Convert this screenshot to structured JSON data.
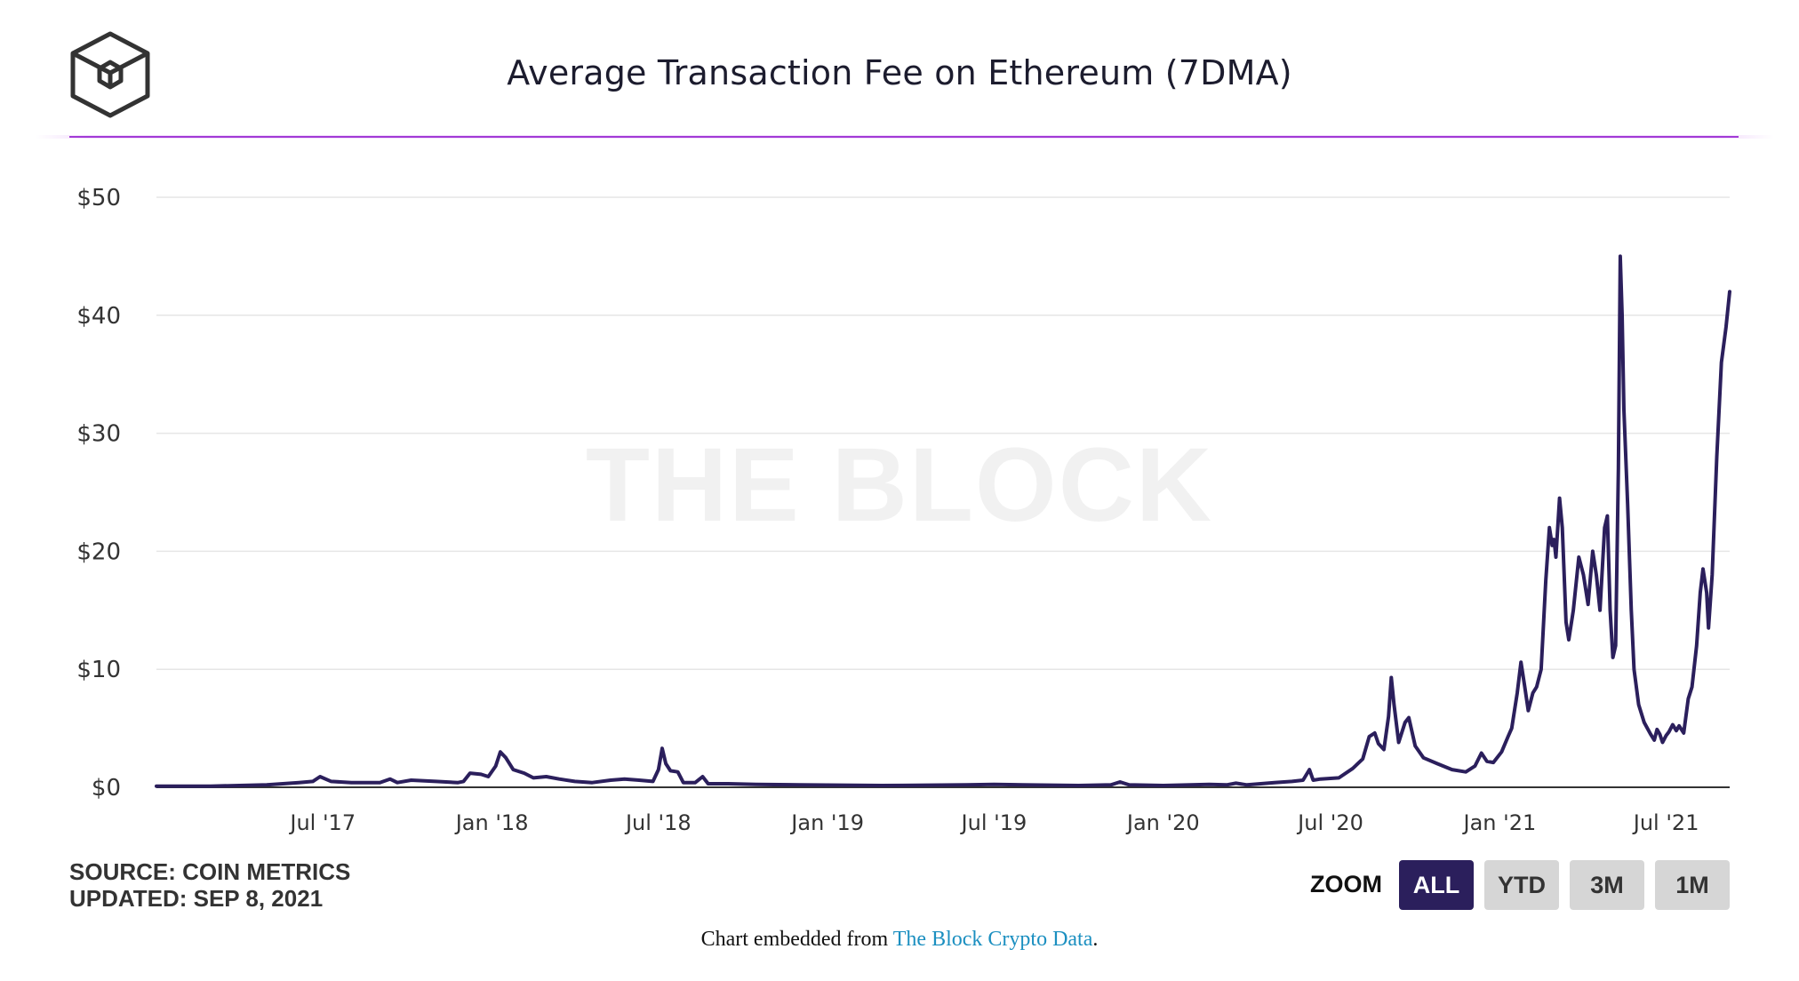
{
  "header": {
    "title": "Average Transaction Fee on Ethereum (7DMA)",
    "logo_icon": "the-block-cube-logo-icon"
  },
  "watermark": "THE BLOCK",
  "footer": {
    "source": "SOURCE: COIN METRICS",
    "updated": "UPDATED: SEP 8, 2021",
    "embed_prefix": "Chart embedded from ",
    "embed_link": "The Block Crypto Data",
    "embed_suffix": "."
  },
  "zoom": {
    "label": "ZOOM",
    "options": [
      "ALL",
      "YTD",
      "3M",
      "1M"
    ],
    "selected": "ALL"
  },
  "colors": {
    "line": "#2b1f5c",
    "accent_rule": "#a23bd6",
    "button_active": "#2b1f5c",
    "button": "#d6d6d6",
    "link": "#1b8fc0"
  },
  "chart_data": {
    "type": "line",
    "title": "Average Transaction Fee on Ethereum (7DMA)",
    "xlabel": "",
    "ylabel": "",
    "x_range": [
      "2017-01-01",
      "2021-09-08"
    ],
    "ylim": [
      0,
      50
    ],
    "y_ticks": [
      0,
      10,
      20,
      30,
      40,
      50
    ],
    "y_tick_labels": [
      "$0",
      "$10",
      "$20",
      "$30",
      "$40",
      "$50"
    ],
    "x_ticks": [
      "2017-07-01",
      "2018-01-01",
      "2018-07-01",
      "2019-01-01",
      "2019-07-01",
      "2020-01-01",
      "2020-07-01",
      "2021-01-01",
      "2021-07-01"
    ],
    "x_tick_labels": [
      "Jul '17",
      "Jan '18",
      "Jul '18",
      "Jan '19",
      "Jul '19",
      "Jan '20",
      "Jul '20",
      "Jan '21",
      "Jul '21"
    ],
    "grid": true,
    "legend": "none",
    "series": [
      {
        "values": [
          [
            "2017-01-01",
            0.1
          ],
          [
            "2017-03-01",
            0.1
          ],
          [
            "2017-05-01",
            0.2
          ],
          [
            "2017-06-05",
            0.4
          ],
          [
            "2017-06-20",
            0.5
          ],
          [
            "2017-06-28",
            0.9
          ],
          [
            "2017-07-10",
            0.5
          ],
          [
            "2017-08-01",
            0.4
          ],
          [
            "2017-09-01",
            0.4
          ],
          [
            "2017-09-12",
            0.7
          ],
          [
            "2017-09-20",
            0.4
          ],
          [
            "2017-10-05",
            0.6
          ],
          [
            "2017-11-01",
            0.5
          ],
          [
            "2017-11-25",
            0.4
          ],
          [
            "2017-12-01",
            0.5
          ],
          [
            "2017-12-08",
            1.2
          ],
          [
            "2017-12-20",
            1.1
          ],
          [
            "2017-12-28",
            0.9
          ],
          [
            "2018-01-05",
            1.8
          ],
          [
            "2018-01-10",
            3.0
          ],
          [
            "2018-01-16",
            2.5
          ],
          [
            "2018-01-24",
            1.5
          ],
          [
            "2018-02-05",
            1.2
          ],
          [
            "2018-02-15",
            0.8
          ],
          [
            "2018-03-01",
            0.9
          ],
          [
            "2018-03-15",
            0.7
          ],
          [
            "2018-04-01",
            0.5
          ],
          [
            "2018-04-20",
            0.4
          ],
          [
            "2018-05-10",
            0.6
          ],
          [
            "2018-05-25",
            0.7
          ],
          [
            "2018-06-10",
            0.6
          ],
          [
            "2018-06-25",
            0.5
          ],
          [
            "2018-07-01",
            1.5
          ],
          [
            "2018-07-05",
            3.3
          ],
          [
            "2018-07-09",
            2.0
          ],
          [
            "2018-07-14",
            1.4
          ],
          [
            "2018-07-22",
            1.3
          ],
          [
            "2018-07-28",
            0.4
          ],
          [
            "2018-08-10",
            0.4
          ],
          [
            "2018-08-18",
            0.9
          ],
          [
            "2018-08-24",
            0.3
          ],
          [
            "2018-09-15",
            0.3
          ],
          [
            "2018-10-15",
            0.25
          ],
          [
            "2018-12-01",
            0.2
          ],
          [
            "2019-03-01",
            0.15
          ],
          [
            "2019-06-01",
            0.2
          ],
          [
            "2019-07-01",
            0.25
          ],
          [
            "2019-08-01",
            0.2
          ],
          [
            "2019-10-01",
            0.15
          ],
          [
            "2019-11-05",
            0.2
          ],
          [
            "2019-11-15",
            0.45
          ],
          [
            "2019-11-25",
            0.2
          ],
          [
            "2020-01-01",
            0.15
          ],
          [
            "2020-02-20",
            0.25
          ],
          [
            "2020-03-10",
            0.2
          ],
          [
            "2020-03-20",
            0.35
          ],
          [
            "2020-04-01",
            0.2
          ],
          [
            "2020-05-01",
            0.4
          ],
          [
            "2020-05-20",
            0.5
          ],
          [
            "2020-06-01",
            0.6
          ],
          [
            "2020-06-08",
            1.5
          ],
          [
            "2020-06-12",
            0.6
          ],
          [
            "2020-06-20",
            0.7
          ],
          [
            "2020-07-10",
            0.8
          ],
          [
            "2020-07-25",
            1.6
          ],
          [
            "2020-08-05",
            2.4
          ],
          [
            "2020-08-12",
            4.3
          ],
          [
            "2020-08-18",
            4.6
          ],
          [
            "2020-08-22",
            3.7
          ],
          [
            "2020-08-28",
            3.2
          ],
          [
            "2020-09-02",
            6.0
          ],
          [
            "2020-09-05",
            9.3
          ],
          [
            "2020-09-08",
            7.0
          ],
          [
            "2020-09-13",
            3.8
          ],
          [
            "2020-09-20",
            5.5
          ],
          [
            "2020-09-24",
            5.9
          ],
          [
            "2020-10-01",
            3.5
          ],
          [
            "2020-10-10",
            2.5
          ],
          [
            "2020-10-25",
            2.0
          ],
          [
            "2020-11-10",
            1.5
          ],
          [
            "2020-11-25",
            1.3
          ],
          [
            "2020-12-05",
            1.8
          ],
          [
            "2020-12-12",
            2.9
          ],
          [
            "2020-12-18",
            2.2
          ],
          [
            "2020-12-25",
            2.1
          ],
          [
            "2021-01-03",
            3.0
          ],
          [
            "2021-01-10",
            4.3
          ],
          [
            "2021-01-14",
            5.0
          ],
          [
            "2021-01-20",
            8.0
          ],
          [
            "2021-01-24",
            10.6
          ],
          [
            "2021-01-28",
            8.6
          ],
          [
            "2021-02-01",
            6.5
          ],
          [
            "2021-02-06",
            8.0
          ],
          [
            "2021-02-10",
            8.5
          ],
          [
            "2021-02-15",
            10.0
          ],
          [
            "2021-02-20",
            17.5
          ],
          [
            "2021-02-24",
            22.0
          ],
          [
            "2021-02-27",
            20.5
          ],
          [
            "2021-03-01",
            21.0
          ],
          [
            "2021-03-03",
            19.5
          ],
          [
            "2021-03-07",
            24.5
          ],
          [
            "2021-03-10",
            22.0
          ],
          [
            "2021-03-14",
            14.0
          ],
          [
            "2021-03-17",
            12.5
          ],
          [
            "2021-03-22",
            15.0
          ],
          [
            "2021-03-28",
            19.5
          ],
          [
            "2021-04-02",
            18.0
          ],
          [
            "2021-04-07",
            15.5
          ],
          [
            "2021-04-12",
            20.0
          ],
          [
            "2021-04-16",
            18.0
          ],
          [
            "2021-04-20",
            15.0
          ],
          [
            "2021-04-25",
            22.0
          ],
          [
            "2021-04-28",
            23.0
          ],
          [
            "2021-05-01",
            15.0
          ],
          [
            "2021-05-04",
            11.0
          ],
          [
            "2021-05-07",
            12.0
          ],
          [
            "2021-05-10",
            27.0
          ],
          [
            "2021-05-12",
            45.0
          ],
          [
            "2021-05-14",
            40.0
          ],
          [
            "2021-05-16",
            32.0
          ],
          [
            "2021-05-20",
            24.0
          ],
          [
            "2021-05-24",
            15.0
          ],
          [
            "2021-05-27",
            10.0
          ],
          [
            "2021-06-01",
            7.0
          ],
          [
            "2021-06-07",
            5.5
          ],
          [
            "2021-06-14",
            4.5
          ],
          [
            "2021-06-18",
            4.0
          ],
          [
            "2021-06-21",
            4.9
          ],
          [
            "2021-06-24",
            4.5
          ],
          [
            "2021-06-27",
            3.8
          ],
          [
            "2021-07-01",
            4.4
          ],
          [
            "2021-07-04",
            4.7
          ],
          [
            "2021-07-08",
            5.3
          ],
          [
            "2021-07-12",
            4.8
          ],
          [
            "2021-07-15",
            5.2
          ],
          [
            "2021-07-20",
            4.6
          ],
          [
            "2021-07-25",
            7.5
          ],
          [
            "2021-07-29",
            8.5
          ],
          [
            "2021-08-03",
            12.0
          ],
          [
            "2021-08-07",
            16.5
          ],
          [
            "2021-08-10",
            18.5
          ],
          [
            "2021-08-14",
            16.5
          ],
          [
            "2021-08-16",
            13.5
          ],
          [
            "2021-08-20",
            18.0
          ],
          [
            "2021-08-25",
            28.0
          ],
          [
            "2021-08-30",
            36.0
          ],
          [
            "2021-09-04",
            39.0
          ],
          [
            "2021-09-08",
            42.0
          ]
        ]
      }
    ]
  }
}
